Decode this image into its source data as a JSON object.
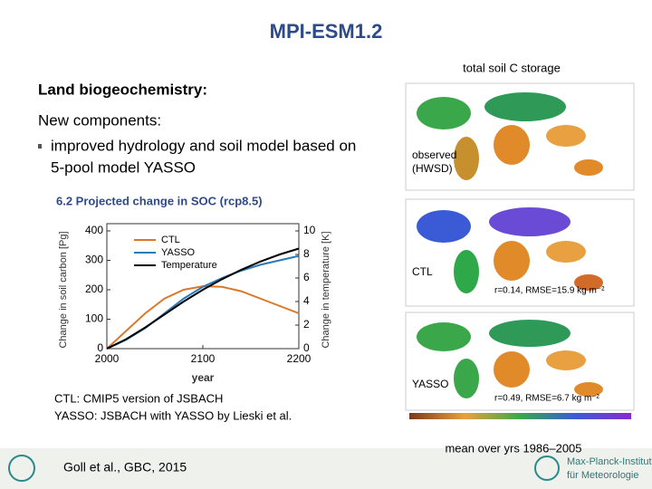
{
  "slide": {
    "title": "MPI-ESM1.2",
    "heading": "Land biogeochemistry:",
    "subheading": "New components:",
    "bullet_line1": "improved hydrology and soil model based on",
    "bullet_line2": "5-pool model YASSO",
    "caption_ctl": "CTL: CMIP5 version of JSBACH",
    "caption_yasso": "YASSO: JSBACH with YASSO by Lieski et al.",
    "map_title": "total soil C storage",
    "map1_label_1": "observed",
    "map1_label_2": "(HWSD)",
    "map2_label": "CTL",
    "map2_stats": "r=0.14, RMSE=15.9 kg m⁻²",
    "map3_label": "YASSO",
    "map3_stats": "r=0.49, RMSE=6.7 kg m⁻²",
    "map_period": "mean over yrs 1986–2005",
    "citation": "Goll et al., GBC, 2015",
    "institute_1": "Max-Planck-Institut",
    "institute_2": "für Meteorologie"
  },
  "chart_data": {
    "type": "line",
    "title": "6.2 Projected change in SOC (rcp8.5)",
    "xlabel": "year",
    "ylabel": "Change in soil carbon [Pg]",
    "y2label": "Change in temperature [K]",
    "x": [
      2000,
      2020,
      2040,
      2060,
      2080,
      2100,
      2120,
      2140,
      2160,
      2180,
      2200
    ],
    "series": [
      {
        "name": "CTL",
        "color": "#d9782a",
        "values": [
          0,
          60,
          120,
          170,
          200,
          212,
          210,
          195,
          170,
          145,
          120
        ]
      },
      {
        "name": "YASSO",
        "color": "#2a7ab8",
        "values": [
          0,
          30,
          70,
          120,
          170,
          210,
          240,
          265,
          285,
          300,
          315
        ]
      },
      {
        "name": "Temperature",
        "color": "#000000",
        "axis": "y2",
        "values": [
          0,
          0.8,
          1.8,
          2.9,
          4.0,
          5.0,
          5.9,
          6.7,
          7.4,
          8.0,
          8.5
        ]
      }
    ],
    "xlim": [
      2000,
      2200
    ],
    "xticks": [
      2000,
      2100,
      2200
    ],
    "ylim": [
      0,
      400
    ],
    "yticks": [
      0,
      100,
      200,
      300,
      400
    ],
    "y2lim": [
      0,
      10
    ],
    "y2ticks": [
      0,
      2,
      4,
      6,
      8,
      10
    ]
  }
}
